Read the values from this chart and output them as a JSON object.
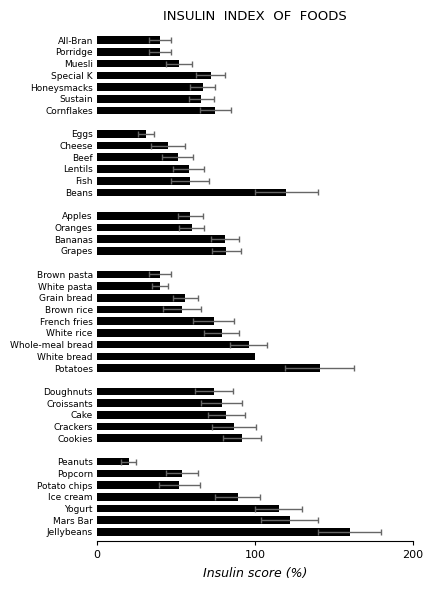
{
  "title": "INSULIN  INDEX  OF  FOODS",
  "xlabel": "Insulin score (%)",
  "categories": [
    "All-Bran",
    "Porridge",
    "Muesli",
    "Special K",
    "Honeysmacks",
    "Sustain",
    "Cornflakes",
    "",
    "Eggs",
    "Cheese",
    "Beef",
    "Lentils",
    "Fish",
    "Beans",
    "",
    "Apples",
    "Oranges",
    "Bananas",
    "Grapes",
    "",
    "Brown pasta",
    "White pasta",
    "Grain bread",
    "Brown rice",
    "French fries",
    "White rice",
    "Whole-meal bread",
    "White bread",
    "Potatoes",
    "",
    "Doughnuts",
    "Croissants",
    "Cake",
    "Crackers",
    "Cookies",
    "",
    "Peanuts",
    "Popcorn",
    "Potato chips",
    "Ice cream",
    "Yogurt",
    "Mars Bar",
    "Jellybeans"
  ],
  "values": [
    40,
    40,
    52,
    72,
    67,
    66,
    75,
    0,
    31,
    45,
    51,
    58,
    59,
    120,
    0,
    59,
    60,
    81,
    82,
    0,
    40,
    40,
    56,
    54,
    74,
    79,
    96,
    100,
    141,
    0,
    74,
    79,
    82,
    87,
    92,
    0,
    20,
    54,
    52,
    89,
    115,
    122,
    160
  ],
  "errors": [
    7,
    7,
    8,
    9,
    8,
    8,
    10,
    0,
    5,
    11,
    10,
    10,
    12,
    20,
    0,
    8,
    8,
    9,
    9,
    0,
    7,
    5,
    8,
    12,
    13,
    11,
    12,
    0,
    22,
    0,
    12,
    13,
    12,
    14,
    12,
    0,
    5,
    10,
    13,
    14,
    15,
    18,
    20
  ],
  "bar_color": "#000000",
  "error_color": "#666666",
  "xlim": [
    0,
    200
  ],
  "xticks": [
    0,
    100,
    200
  ],
  "background_color": "#ffffff",
  "title_fontsize": 9.5,
  "label_fontsize": 6.5,
  "xlabel_fontsize": 9
}
